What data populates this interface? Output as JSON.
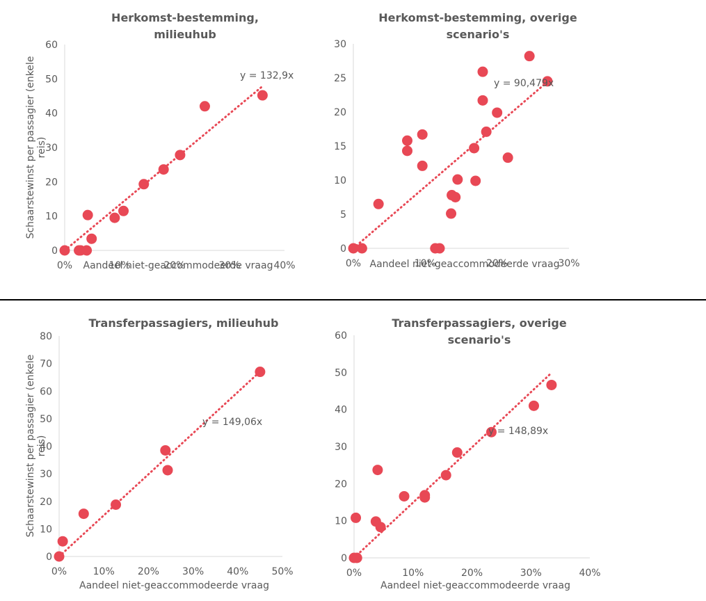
{
  "chart_data": [
    {
      "type": "scatter",
      "title": [
        "Herkomst-bestemming,",
        "milieuhub"
      ],
      "xlabel": "Aandeel niet-geaccommodeerde vraag",
      "ylabel": [
        "Schaarstewinst per passagier (enkele",
        "reis)"
      ],
      "xlim": [
        0,
        0.4
      ],
      "ylim": [
        0,
        60
      ],
      "xticks": [
        "0%",
        "10%",
        "20%",
        "30%",
        "40%"
      ],
      "yticks": [
        "0",
        "10",
        "20",
        "30",
        "40",
        "50",
        "60"
      ],
      "trendline": {
        "label": "y = 132,9x",
        "slope": 132.9,
        "x_end": 0.36
      },
      "points": [
        [
          0.0,
          0.0
        ],
        [
          0.026,
          0.0
        ],
        [
          0.029,
          0.0
        ],
        [
          0.04,
          0.0
        ],
        [
          0.042,
          10.3
        ],
        [
          0.049,
          3.4
        ],
        [
          0.091,
          9.5
        ],
        [
          0.107,
          11.5
        ],
        [
          0.144,
          19.3
        ],
        [
          0.18,
          23.6
        ],
        [
          0.21,
          27.8
        ],
        [
          0.255,
          42.0
        ],
        [
          0.36,
          45.2
        ]
      ],
      "color": "#e84855"
    },
    {
      "type": "scatter",
      "title": [
        "Herkomst-bestemming, overige",
        "scenario's"
      ],
      "xlabel": "Aandeel niet-geaccommodeerde vraag",
      "ylabel": [],
      "xlim": [
        0,
        0.3
      ],
      "ylim": [
        0,
        30
      ],
      "xticks": [
        "0%",
        "10%",
        "20%",
        "30%"
      ],
      "yticks": [
        "0",
        "5",
        "10",
        "15",
        "20",
        "25",
        "30"
      ],
      "trendline": {
        "label": "y = 90,479x",
        "slope": 90.479,
        "x_end": 0.27
      },
      "points": [
        [
          0.0,
          0.0
        ],
        [
          0.012,
          0.0
        ],
        [
          0.035,
          6.5
        ],
        [
          0.075,
          15.8
        ],
        [
          0.075,
          14.3
        ],
        [
          0.096,
          16.7
        ],
        [
          0.096,
          12.1
        ],
        [
          0.114,
          0.0
        ],
        [
          0.12,
          0.0
        ],
        [
          0.136,
          5.1
        ],
        [
          0.137,
          7.8
        ],
        [
          0.142,
          7.5
        ],
        [
          0.145,
          10.1
        ],
        [
          0.168,
          14.7
        ],
        [
          0.17,
          9.9
        ],
        [
          0.18,
          25.9
        ],
        [
          0.18,
          21.7
        ],
        [
          0.185,
          17.1
        ],
        [
          0.2,
          19.9
        ],
        [
          0.215,
          13.3
        ],
        [
          0.245,
          28.2
        ],
        [
          0.27,
          24.5
        ]
      ],
      "color": "#e84855"
    },
    {
      "type": "scatter",
      "title": [
        "Transferpassagiers, milieuhub"
      ],
      "xlabel": "Aandeel niet-geaccommodeerde vraag",
      "ylabel": [
        "Schaarstewinst per passagier (enkele",
        "reis)"
      ],
      "xlim": [
        0,
        0.5
      ],
      "ylim": [
        0,
        80
      ],
      "xticks": [
        "0%",
        "10%",
        "20%",
        "30%",
        "40%",
        "50%"
      ],
      "yticks": [
        "0",
        "10",
        "20",
        "30",
        "40",
        "50",
        "60",
        "70",
        "80"
      ],
      "trendline": {
        "label": "y = 149,06x",
        "slope": 149.06,
        "x_end": 0.45
      },
      "points": [
        [
          0.0,
          0.0
        ],
        [
          0.008,
          5.5
        ],
        [
          0.055,
          15.5
        ],
        [
          0.127,
          18.8
        ],
        [
          0.238,
          38.5
        ],
        [
          0.243,
          31.3
        ],
        [
          0.45,
          67.0
        ]
      ],
      "color": "#e84855"
    },
    {
      "type": "scatter",
      "title": [
        "Transferpassagiers, overige",
        "scenario's"
      ],
      "xlabel": "Aandeel niet-geaccommodeerde vraag",
      "ylabel": [],
      "xlim": [
        0,
        0.4
      ],
      "ylim": [
        0,
        60
      ],
      "xticks": [
        "0%",
        "10%",
        "20%",
        "30%",
        "40%"
      ],
      "yticks": [
        "0",
        "10",
        "20",
        "30",
        "40",
        "50",
        "60"
      ],
      "trendline": {
        "label": "y = 148,89x",
        "slope": 148.89,
        "x_end": 0.335
      },
      "points": [
        [
          0.0,
          0.0
        ],
        [
          0.003,
          10.8
        ],
        [
          0.005,
          0.0
        ],
        [
          0.037,
          9.8
        ],
        [
          0.04,
          23.7
        ],
        [
          0.045,
          8.3
        ],
        [
          0.085,
          16.6
        ],
        [
          0.12,
          16.9
        ],
        [
          0.12,
          16.3
        ],
        [
          0.156,
          22.3
        ],
        [
          0.175,
          28.4
        ],
        [
          0.233,
          33.9
        ],
        [
          0.305,
          41.0
        ],
        [
          0.335,
          46.6
        ]
      ],
      "color": "#e84855"
    }
  ]
}
